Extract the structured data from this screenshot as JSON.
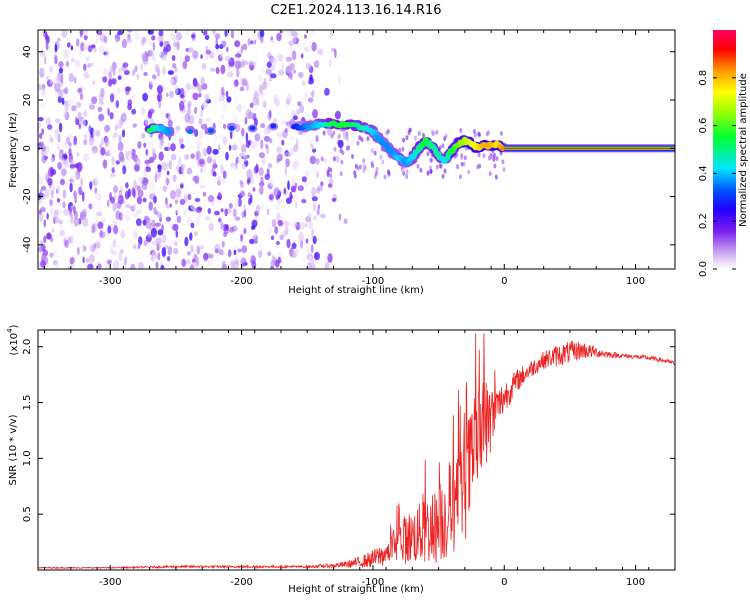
{
  "title": "C2E1.2024.113.16.14.R16",
  "chart_data": [
    {
      "type": "heatmap",
      "title": "C2E1.2024.113.16.14.R16",
      "xlabel": "Height of straight line (km)",
      "ylabel": "Frequency (Hz)",
      "xlim": [
        -355,
        130
      ],
      "ylim": [
        -50,
        49
      ],
      "x_ticks": [
        -300,
        -200,
        -100,
        0,
        100
      ],
      "x_tick_labels": [
        "-300",
        "-200",
        "-100",
        "0",
        "100"
      ],
      "y_ticks": [
        -40,
        -20,
        0,
        20,
        40
      ],
      "y_tick_labels": [
        "-40",
        "-20",
        "0",
        "20",
        "40"
      ],
      "colorbar": {
        "label": "Normalized spectral amplitude",
        "range": [
          0,
          1
        ],
        "ticks": [
          0.0,
          0.2,
          0.4,
          0.6,
          0.8
        ],
        "tick_labels": [
          "0.0",
          "0.2",
          "0.4",
          "0.6",
          "0.8"
        ],
        "colormap": [
          "#ffffff",
          "#c9a5f0",
          "#7a1cf0",
          "#2200ff",
          "#0055ff",
          "#00e5ff",
          "#00ff33",
          "#9dff00",
          "#ffff00",
          "#ff9900",
          "#ff0000",
          "#ff0066"
        ]
      },
      "signal_track": [
        {
          "x": -270,
          "y": 8,
          "amp": 0.55
        },
        {
          "x": -262,
          "y": 8,
          "amp": 0.45
        },
        {
          "x": -255,
          "y": 7,
          "amp": 0.4
        },
        {
          "x": -160,
          "y": 9,
          "amp": 0.3
        },
        {
          "x": -150,
          "y": 9,
          "amp": 0.4
        },
        {
          "x": -140,
          "y": 10,
          "amp": 0.45
        },
        {
          "x": -130,
          "y": 10,
          "amp": 0.55
        },
        {
          "x": -120,
          "y": 10,
          "amp": 0.55
        },
        {
          "x": -110,
          "y": 9,
          "amp": 0.5
        },
        {
          "x": -100,
          "y": 7,
          "amp": 0.45
        },
        {
          "x": -95,
          "y": 4,
          "amp": 0.4
        },
        {
          "x": -90,
          "y": 1,
          "amp": 0.4
        },
        {
          "x": -85,
          "y": -2,
          "amp": 0.4
        },
        {
          "x": -80,
          "y": -4,
          "amp": 0.45
        },
        {
          "x": -75,
          "y": -6,
          "amp": 0.4
        },
        {
          "x": -70,
          "y": -4,
          "amp": 0.45
        },
        {
          "x": -65,
          "y": 0,
          "amp": 0.5
        },
        {
          "x": -60,
          "y": 3,
          "amp": 0.55
        },
        {
          "x": -55,
          "y": 1,
          "amp": 0.5
        },
        {
          "x": -50,
          "y": -3,
          "amp": 0.5
        },
        {
          "x": -45,
          "y": -5,
          "amp": 0.45
        },
        {
          "x": -40,
          "y": -1,
          "amp": 0.55
        },
        {
          "x": -35,
          "y": 2,
          "amp": 0.6
        },
        {
          "x": -30,
          "y": 3,
          "amp": 0.65
        },
        {
          "x": -25,
          "y": 2,
          "amp": 0.7
        },
        {
          "x": -20,
          "y": 0,
          "amp": 0.75
        },
        {
          "x": -15,
          "y": 1,
          "amp": 0.8
        },
        {
          "x": -10,
          "y": 1,
          "amp": 0.8
        },
        {
          "x": -5,
          "y": 2,
          "amp": 0.75
        },
        {
          "x": 0,
          "y": 0,
          "amp": 0.85
        }
      ],
      "steady_line": {
        "x_start": 0,
        "x_end": 130,
        "y": 0,
        "amp": 0.95
      },
      "noise_region": {
        "x_start": -355,
        "x_end": -140,
        "amp_max": 0.3
      }
    },
    {
      "type": "line",
      "xlabel": "Height of straight line (km)",
      "ylabel": "SNR (10 * v/v)",
      "y_scale_label": "(x10",
      "y_scale_exp": "4",
      "y_scale_close": ")",
      "xlim": [
        -355,
        130
      ],
      "ylim": [
        0,
        2.15
      ],
      "x_ticks": [
        -300,
        -200,
        -100,
        0,
        100
      ],
      "x_tick_labels": [
        "-300",
        "-200",
        "-100",
        "0",
        "100"
      ],
      "y_ticks": [
        0.5,
        1.0,
        1.5,
        2.0
      ],
      "y_tick_labels": [
        "0.5",
        "1.0",
        "1.5",
        "2.0"
      ],
      "series": [
        {
          "color": "#ee2222",
          "x": [
            -355,
            -300,
            -250,
            -200,
            -150,
            -130,
            -120,
            -110,
            -100,
            -90,
            -80,
            -70,
            -60,
            -50,
            -40,
            -30,
            -25,
            -20,
            -15,
            -10,
            -5,
            0,
            10,
            20,
            30,
            40,
            50,
            60,
            70,
            80,
            90,
            100,
            110,
            120,
            130
          ],
          "y": [
            0.02,
            0.02,
            0.03,
            0.03,
            0.03,
            0.04,
            0.05,
            0.07,
            0.1,
            0.15,
            0.25,
            0.3,
            0.35,
            0.4,
            0.55,
            0.75,
            0.95,
            1.15,
            1.3,
            1.35,
            1.45,
            1.55,
            1.7,
            1.8,
            1.88,
            1.92,
            1.95,
            1.97,
            1.95,
            1.93,
            1.92,
            1.91,
            1.9,
            1.88,
            1.85
          ],
          "noise": [
            0.005,
            0.005,
            0.01,
            0.01,
            0.01,
            0.02,
            0.03,
            0.05,
            0.08,
            0.12,
            0.2,
            0.25,
            0.3,
            0.35,
            0.45,
            0.5,
            0.55,
            0.5,
            0.45,
            0.3,
            0.2,
            0.15,
            0.1,
            0.08,
            0.08,
            0.1,
            0.1,
            0.08,
            0.05,
            0.03,
            0.02,
            0.02,
            0.02,
            0.02,
            0.02
          ]
        }
      ]
    }
  ]
}
